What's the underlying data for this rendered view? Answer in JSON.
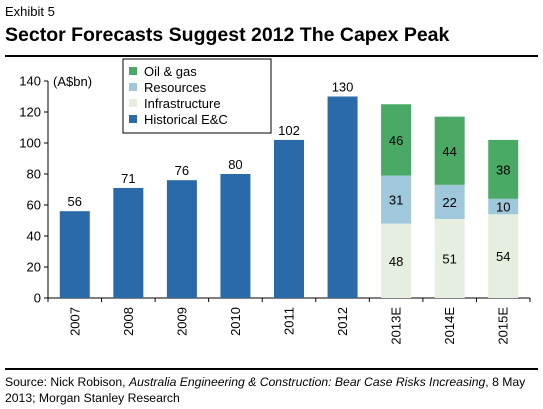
{
  "header": {
    "exhibit": "Exhibit 5",
    "title": "Sector Forecasts Suggest 2012 The Capex Peak"
  },
  "source": {
    "prefix": "Source: Nick Robison, ",
    "italic": "Australia Engineering & Construction: Bear Case Risks Increasing",
    "suffix": ", 8 May 2013; Morgan Stanley Research"
  },
  "chart_data": {
    "type": "bar",
    "stacked": true,
    "unit_label": "(A$bn)",
    "categories": [
      "2007",
      "2008",
      "2009",
      "2010",
      "2011",
      "2012",
      "2013E",
      "2014E",
      "2015E"
    ],
    "ylim": [
      0,
      140
    ],
    "yticks": [
      0,
      20,
      40,
      60,
      80,
      100,
      120,
      140
    ],
    "legend_position": "top-left",
    "grid": false,
    "series": [
      {
        "name": "Historical E&C",
        "color": "#2a6aa9",
        "label_position": "above",
        "values": [
          56,
          71,
          76,
          80,
          102,
          130,
          null,
          null,
          null
        ]
      },
      {
        "name": "Infrastructure",
        "color": "#e6efdf",
        "label_position": "inside",
        "values": [
          null,
          null,
          null,
          null,
          null,
          null,
          48,
          51,
          54
        ]
      },
      {
        "name": "Resources",
        "color": "#9fc8dd",
        "label_position": "inside",
        "values": [
          null,
          null,
          null,
          null,
          null,
          null,
          31,
          22,
          10
        ]
      },
      {
        "name": "Oil & gas",
        "color": "#4aaa65",
        "label_position": "inside",
        "values": [
          null,
          null,
          null,
          null,
          null,
          null,
          46,
          44,
          38
        ]
      }
    ],
    "legend_order": [
      "Oil & gas",
      "Resources",
      "Infrastructure",
      "Historical E&C"
    ]
  }
}
